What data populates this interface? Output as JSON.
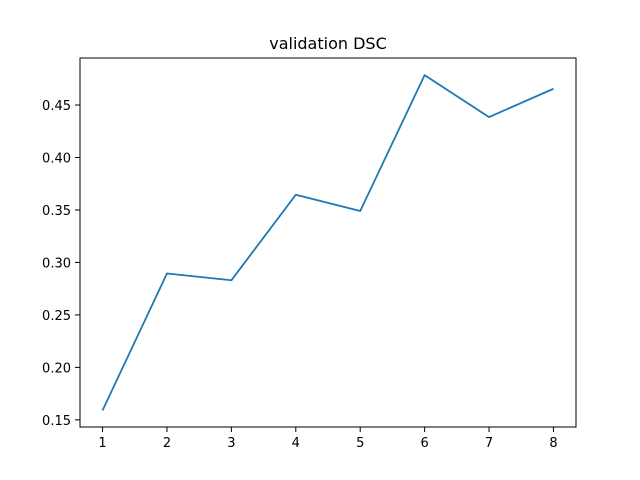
{
  "chart_data": {
    "type": "line",
    "title": "validation DSC",
    "xlabel": "",
    "ylabel": "",
    "x": [
      1,
      2,
      3,
      4,
      5,
      6,
      7,
      8
    ],
    "series": [
      {
        "values": [
          0.159,
          0.2895,
          0.283,
          0.3645,
          0.349,
          0.4785,
          0.4385,
          0.4655
        ],
        "color": "#1f77b4"
      }
    ],
    "xlim": [
      0.65,
      8.35
    ],
    "ylim": [
      0.1432,
      0.4948
    ],
    "x_ticks": [
      1,
      2,
      3,
      4,
      5,
      6,
      7,
      8
    ],
    "x_tick_labels": [
      "1",
      "2",
      "3",
      "4",
      "5",
      "6",
      "7",
      "8"
    ],
    "y_ticks": [
      0.15,
      0.2,
      0.25,
      0.3,
      0.35,
      0.4,
      0.45
    ],
    "y_tick_labels": [
      "0.15",
      "0.20",
      "0.25",
      "0.30",
      "0.35",
      "0.40",
      "0.45"
    ],
    "grid": false,
    "legend": false
  }
}
